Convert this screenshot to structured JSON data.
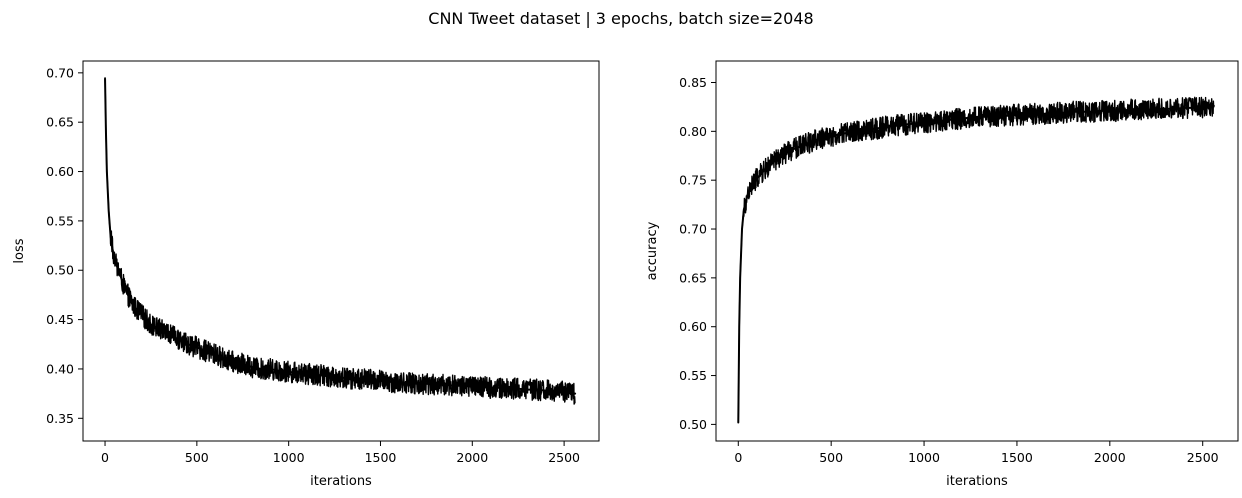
{
  "figure": {
    "title": "CNN Tweet dataset | 3 epochs, batch size=2048"
  },
  "chart_data": [
    {
      "type": "line",
      "xlabel": "iterations",
      "ylabel": "loss",
      "xlim": [
        -120,
        2690
      ],
      "ylim": [
        0.327,
        0.712
      ],
      "xticks": [
        0,
        500,
        1000,
        1500,
        2000,
        2500
      ],
      "yticks": [
        0.35,
        0.4,
        0.45,
        0.5,
        0.55,
        0.6,
        0.65,
        0.7
      ],
      "grid": false,
      "series": [
        {
          "color": "#000000",
          "x": [
            0,
            5,
            10,
            20,
            30,
            50,
            75,
            100,
            150,
            200,
            250,
            300,
            350,
            400,
            450,
            500,
            550,
            600,
            650,
            700,
            750,
            800,
            850,
            900,
            950,
            1000,
            1050,
            1100,
            1150,
            1200,
            1250,
            1300,
            1350,
            1400,
            1450,
            1500,
            1550,
            1600,
            1650,
            1700,
            1750,
            1800,
            1850,
            1900,
            1950,
            2000,
            2050,
            2100,
            2150,
            2200,
            2250,
            2300,
            2350,
            2400,
            2450,
            2500,
            2530,
            2560
          ],
          "values": [
            0.694,
            0.64,
            0.6,
            0.56,
            0.535,
            0.51,
            0.5,
            0.485,
            0.465,
            0.455,
            0.445,
            0.44,
            0.435,
            0.43,
            0.425,
            0.422,
            0.418,
            0.415,
            0.41,
            0.407,
            0.405,
            0.402,
            0.4,
            0.4,
            0.398,
            0.397,
            0.396,
            0.395,
            0.394,
            0.393,
            0.392,
            0.391,
            0.39,
            0.39,
            0.389,
            0.388,
            0.387,
            0.386,
            0.386,
            0.385,
            0.385,
            0.384,
            0.384,
            0.383,
            0.383,
            0.382,
            0.382,
            0.381,
            0.381,
            0.38,
            0.38,
            0.379,
            0.379,
            0.378,
            0.378,
            0.377,
            0.376,
            0.375
          ]
        }
      ]
    },
    {
      "type": "line",
      "xlabel": "iterations",
      "ylabel": "accuracy",
      "xlim": [
        -120,
        2690
      ],
      "ylim": [
        0.483,
        0.872
      ],
      "xticks": [
        0,
        500,
        1000,
        1500,
        2000,
        2500
      ],
      "yticks": [
        0.5,
        0.55,
        0.6,
        0.65,
        0.7,
        0.75,
        0.8,
        0.85
      ],
      "grid": false,
      "series": [
        {
          "color": "#000000",
          "x": [
            0,
            5,
            10,
            20,
            30,
            50,
            75,
            100,
            150,
            200,
            250,
            300,
            350,
            400,
            450,
            500,
            550,
            600,
            650,
            700,
            750,
            800,
            850,
            900,
            950,
            1000,
            1050,
            1100,
            1150,
            1200,
            1250,
            1300,
            1350,
            1400,
            1450,
            1500,
            1550,
            1600,
            1650,
            1700,
            1750,
            1800,
            1850,
            1900,
            1950,
            2000,
            2050,
            2100,
            2150,
            2200,
            2250,
            2300,
            2350,
            2400,
            2450,
            2500,
            2530,
            2560
          ],
          "values": [
            0.502,
            0.6,
            0.65,
            0.7,
            0.72,
            0.735,
            0.745,
            0.752,
            0.762,
            0.77,
            0.777,
            0.782,
            0.786,
            0.79,
            0.793,
            0.795,
            0.797,
            0.799,
            0.8,
            0.802,
            0.803,
            0.805,
            0.806,
            0.807,
            0.808,
            0.809,
            0.81,
            0.811,
            0.812,
            0.813,
            0.814,
            0.815,
            0.815,
            0.816,
            0.816,
            0.817,
            0.817,
            0.818,
            0.818,
            0.819,
            0.819,
            0.82,
            0.82,
            0.82,
            0.821,
            0.821,
            0.821,
            0.822,
            0.822,
            0.822,
            0.823,
            0.823,
            0.823,
            0.824,
            0.824,
            0.824,
            0.825,
            0.826
          ]
        }
      ]
    }
  ]
}
